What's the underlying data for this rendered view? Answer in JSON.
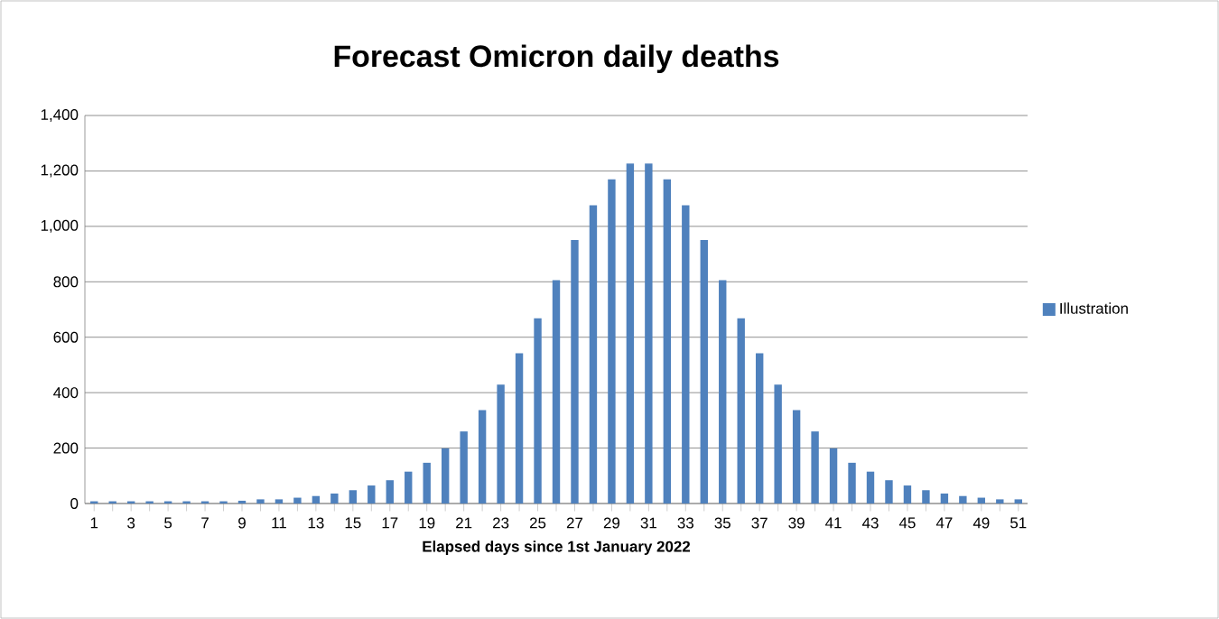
{
  "chart_data": {
    "type": "bar",
    "title": "Forecast Omicron daily deaths",
    "xlabel": "Elapsed days since 1st January 2022",
    "categories": [
      "1",
      null,
      "3",
      null,
      "5",
      null,
      "7",
      null,
      "9",
      null,
      "11",
      null,
      "13",
      null,
      "15",
      null,
      "17",
      null,
      "19",
      null,
      "21",
      null,
      "23",
      null,
      "25",
      null,
      "27",
      null,
      "29",
      null,
      "31",
      null,
      "33",
      null,
      "35",
      null,
      "37",
      null,
      "39",
      null,
      "41",
      null,
      "43",
      null,
      "45",
      null,
      "47",
      null,
      "49",
      null,
      "51"
    ],
    "series": [
      {
        "name": "Illustration",
        "color": "#4f81bd",
        "values": [
          8,
          8,
          8,
          8,
          8,
          8,
          8,
          8,
          10,
          15,
          15,
          21,
          27,
          36,
          48,
          65,
          84,
          115,
          147,
          199,
          260,
          337,
          429,
          542,
          668,
          806,
          951,
          1076,
          1170,
          1227,
          1227,
          1170,
          1076,
          951,
          806,
          668,
          542,
          429,
          337,
          260,
          199,
          147,
          115,
          84,
          65,
          48,
          36,
          27,
          21,
          15,
          15
        ]
      }
    ],
    "ylim": [
      0,
      1400
    ],
    "yticks": [
      {
        "value": 0,
        "label": "0"
      },
      {
        "value": 200,
        "label": "200"
      },
      {
        "value": 400,
        "label": "400"
      },
      {
        "value": 600,
        "label": "600"
      },
      {
        "value": 800,
        "label": "800"
      },
      {
        "value": 1000,
        "label": "1,000"
      },
      {
        "value": 1200,
        "label": "1,200"
      },
      {
        "value": 1400,
        "label": "1,400"
      }
    ],
    "grid": "y",
    "legend": "right"
  }
}
